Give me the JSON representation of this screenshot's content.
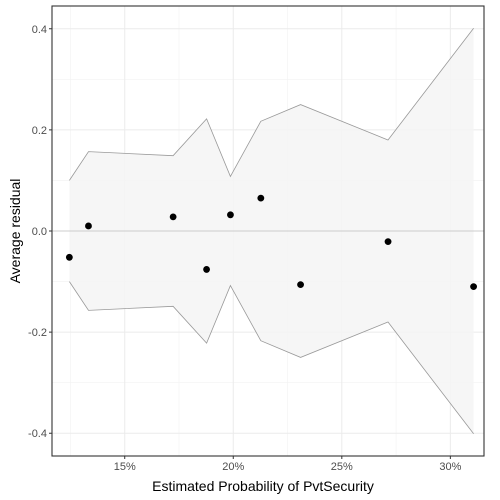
{
  "chart_data": {
    "type": "scatter",
    "title": "",
    "xlabel": "Estimated Probability of PvtSecurity",
    "ylabel": "Average residual",
    "xlim": [
      0.1165,
      0.3155
    ],
    "ylim": [
      -0.445,
      0.445
    ],
    "x_ticks": [
      0.15,
      0.2,
      0.25,
      0.3
    ],
    "x_tick_labels": [
      "15%",
      "20%",
      "25%",
      "30%"
    ],
    "y_ticks": [
      -0.4,
      -0.2,
      0.0,
      0.2,
      0.4
    ],
    "y_tick_labels": [
      "-0.4",
      "-0.2",
      "0.0",
      "0.2",
      "0.4"
    ],
    "grid": true,
    "reference_line_y": 0,
    "points": {
      "x": [
        0.1245,
        0.1333,
        0.1723,
        0.1877,
        0.1987,
        0.2127,
        0.231,
        0.2713,
        0.3107
      ],
      "y": [
        -0.052,
        0.01,
        0.028,
        -0.076,
        0.032,
        0.065,
        -0.106,
        -0.021,
        -0.11
      ],
      "color": "#000000"
    },
    "bounds": {
      "x": [
        0.1245,
        0.1333,
        0.1723,
        0.1877,
        0.1987,
        0.2127,
        0.231,
        0.2713,
        0.3107
      ],
      "upper": [
        0.1,
        0.157,
        0.149,
        0.222,
        0.108,
        0.217,
        0.25,
        0.18,
        0.401
      ],
      "lower": [
        -0.1,
        -0.157,
        -0.149,
        -0.222,
        -0.108,
        -0.217,
        -0.25,
        -0.18,
        -0.401
      ],
      "fill_color": "#f5f5f5",
      "line_color": "#999999"
    },
    "colors": {
      "panel_border": "#333333",
      "grid_major": "#ebebeb",
      "grid_minor": "#f2f2f2",
      "reference_line": "#cccccc",
      "tick_text": "#4d4d4d"
    }
  }
}
